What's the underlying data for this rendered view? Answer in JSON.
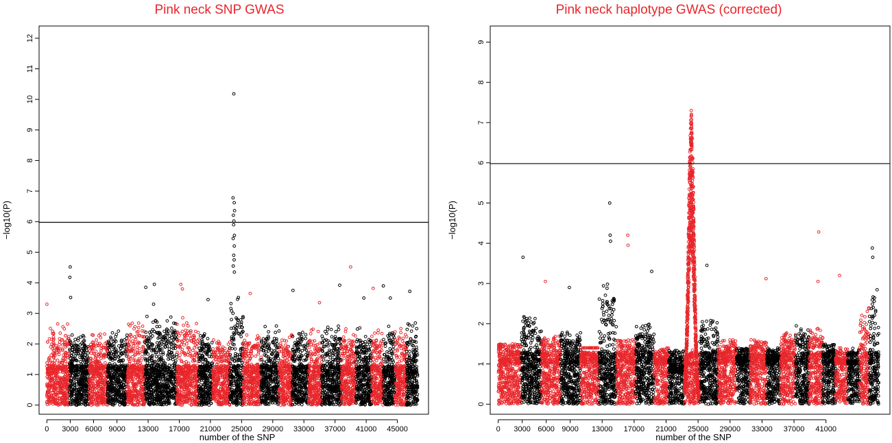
{
  "chart_data": [
    {
      "type": "scatter",
      "title": "Pink neck SNP GWAS",
      "xlabel": "number of the SNP",
      "ylabel": "−log10(P)",
      "xlim": [
        -1000,
        49000
      ],
      "ylim": [
        -0.3,
        12.4
      ],
      "x_ticks": [
        0,
        3000,
        6000,
        9000,
        13000,
        17000,
        21000,
        25000,
        29000,
        33000,
        37000,
        41000,
        45000
      ],
      "y_ticks": [
        0,
        1,
        2,
        3,
        4,
        5,
        6,
        7,
        8,
        9,
        10,
        11,
        12
      ],
      "threshold": 5.98,
      "grid": false,
      "colors": [
        "#e8262b",
        "#000000"
      ],
      "series_note": "points alternate red/black by chromosome block",
      "blocks": [
        {
          "start": 0,
          "end": 2900,
          "peak": 2.7
        },
        {
          "start": 2900,
          "end": 5400,
          "peak": 2.3
        },
        {
          "start": 5400,
          "end": 7800,
          "peak": 2.4
        },
        {
          "start": 7800,
          "end": 10300,
          "peak": 2.5
        },
        {
          "start": 10300,
          "end": 12600,
          "peak": 2.7
        },
        {
          "start": 12600,
          "end": 16700,
          "peak": 2.9
        },
        {
          "start": 16700,
          "end": 19500,
          "peak": 2.9
        },
        {
          "start": 19500,
          "end": 21300,
          "peak": 2.4
        },
        {
          "start": 21300,
          "end": 23500,
          "peak": 2.2
        },
        {
          "start": 23500,
          "end": 25200,
          "peak": 3.6
        },
        {
          "start": 25200,
          "end": 27500,
          "peak": 2.4
        },
        {
          "start": 27500,
          "end": 29800,
          "peak": 2.6
        },
        {
          "start": 29800,
          "end": 31500,
          "peak": 2.3
        },
        {
          "start": 31500,
          "end": 33600,
          "peak": 2.4
        },
        {
          "start": 33600,
          "end": 35300,
          "peak": 2.5
        },
        {
          "start": 35300,
          "end": 37800,
          "peak": 2.6
        },
        {
          "start": 37800,
          "end": 39700,
          "peak": 2.5
        },
        {
          "start": 39700,
          "end": 41700,
          "peak": 2.6
        },
        {
          "start": 41700,
          "end": 43200,
          "peak": 2.5
        },
        {
          "start": 43200,
          "end": 44700,
          "peak": 2.7
        },
        {
          "start": 44700,
          "end": 46200,
          "peak": 2.6
        },
        {
          "start": 46200,
          "end": 47600,
          "peak": 2.7
        }
      ],
      "highlights": [
        {
          "x": 24000,
          "y": 10.18
        },
        {
          "x": 23900,
          "y": 6.78
        },
        {
          "x": 24050,
          "y": 6.62
        },
        {
          "x": 24100,
          "y": 6.36
        },
        {
          "x": 23950,
          "y": 6.21
        },
        {
          "x": 24020,
          "y": 6.02
        },
        {
          "x": 23980,
          "y": 5.9
        },
        {
          "x": 24080,
          "y": 5.55
        },
        {
          "x": 23920,
          "y": 5.45
        },
        {
          "x": 24060,
          "y": 5.2
        },
        {
          "x": 23990,
          "y": 4.9
        },
        {
          "x": 24040,
          "y": 4.75
        },
        {
          "x": 23930,
          "y": 4.55
        },
        {
          "x": 24070,
          "y": 4.35
        },
        {
          "x": 3000,
          "y": 4.52
        },
        {
          "x": 2950,
          "y": 4.18
        },
        {
          "x": 3050,
          "y": 3.52
        },
        {
          "x": 13800,
          "y": 3.95
        },
        {
          "x": 12700,
          "y": 3.85
        },
        {
          "x": 17200,
          "y": 3.95
        },
        {
          "x": 17400,
          "y": 3.8
        },
        {
          "x": 37600,
          "y": 3.92
        },
        {
          "x": 39000,
          "y": 4.52
        },
        {
          "x": 41900,
          "y": 3.82
        },
        {
          "x": 43200,
          "y": 3.9
        },
        {
          "x": 46600,
          "y": 3.72
        },
        {
          "x": 31600,
          "y": 3.75
        },
        {
          "x": 26100,
          "y": 3.65
        },
        {
          "x": 20700,
          "y": 3.45
        },
        {
          "x": 0,
          "y": 3.3
        },
        {
          "x": 13700,
          "y": 3.3
        },
        {
          "x": 35000,
          "y": 3.35
        },
        {
          "x": 44100,
          "y": 3.5
        },
        {
          "x": 40700,
          "y": 3.5
        }
      ]
    },
    {
      "type": "scatter",
      "title": "Pink neck haplotype GWAS (corrected)",
      "xlabel": "number of the SNP",
      "ylabel": "−log10(P)",
      "xlim": [
        -1000,
        49000
      ],
      "ylim": [
        -0.25,
        9.4
      ],
      "x_ticks": [
        0,
        3000,
        6000,
        9000,
        13000,
        17000,
        21000,
        25000,
        29000,
        33000,
        37000,
        41000
      ],
      "y_ticks": [
        0,
        1,
        2,
        3,
        4,
        5,
        6,
        7,
        8,
        9
      ],
      "threshold": 5.98,
      "grid": false,
      "colors": [
        "#e8262b",
        "#000000"
      ],
      "blocks": [
        {
          "start": 0,
          "end": 2900,
          "peak": 1.5
        },
        {
          "start": 2900,
          "end": 5400,
          "peak": 2.2
        },
        {
          "start": 5400,
          "end": 7800,
          "peak": 1.7
        },
        {
          "start": 7800,
          "end": 10300,
          "peak": 1.8
        },
        {
          "start": 10300,
          "end": 12600,
          "peak": 1.4
        },
        {
          "start": 12600,
          "end": 14800,
          "peak": 3.2
        },
        {
          "start": 14800,
          "end": 17200,
          "peak": 1.6
        },
        {
          "start": 17200,
          "end": 19500,
          "peak": 2.0
        },
        {
          "start": 19500,
          "end": 21300,
          "peak": 1.2
        },
        {
          "start": 21300,
          "end": 23300,
          "peak": 0.7
        },
        {
          "start": 23300,
          "end": 25200,
          "peak": 1.0
        },
        {
          "start": 25200,
          "end": 27500,
          "peak": 2.2
        },
        {
          "start": 27500,
          "end": 29800,
          "peak": 1.6
        },
        {
          "start": 29800,
          "end": 31500,
          "peak": 1.3
        },
        {
          "start": 31500,
          "end": 33600,
          "peak": 1.6
        },
        {
          "start": 33600,
          "end": 35300,
          "peak": 1.3
        },
        {
          "start": 35300,
          "end": 37200,
          "peak": 1.8
        },
        {
          "start": 37200,
          "end": 38900,
          "peak": 2.0
        },
        {
          "start": 38900,
          "end": 40600,
          "peak": 1.9
        },
        {
          "start": 40600,
          "end": 42200,
          "peak": 1.5
        },
        {
          "start": 42200,
          "end": 43700,
          "peak": 1.2
        },
        {
          "start": 43700,
          "end": 45200,
          "peak": 1.1
        },
        {
          "start": 45200,
          "end": 46400,
          "peak": 2.4
        },
        {
          "start": 46400,
          "end": 47600,
          "peak": 3.0
        }
      ],
      "peak_region": {
        "start": 23300,
        "end": 25100,
        "center": 24150,
        "max": 7.3
      },
      "highlights": [
        {
          "x": 24150,
          "y": 7.3
        },
        {
          "x": 24130,
          "y": 7.15
        },
        {
          "x": 24170,
          "y": 7.0
        },
        {
          "x": 24100,
          "y": 6.85
        },
        {
          "x": 24200,
          "y": 6.62
        },
        {
          "x": 24120,
          "y": 6.45
        },
        {
          "x": 13950,
          "y": 5.0
        },
        {
          "x": 14000,
          "y": 4.2
        },
        {
          "x": 14050,
          "y": 4.05
        },
        {
          "x": 16200,
          "y": 4.2
        },
        {
          "x": 16250,
          "y": 3.95
        },
        {
          "x": 40100,
          "y": 4.28
        },
        {
          "x": 46800,
          "y": 3.88
        },
        {
          "x": 46850,
          "y": 3.65
        },
        {
          "x": 3100,
          "y": 3.65
        },
        {
          "x": 26100,
          "y": 3.45
        },
        {
          "x": 42700,
          "y": 3.2
        },
        {
          "x": 33500,
          "y": 3.12
        },
        {
          "x": 5900,
          "y": 3.05
        },
        {
          "x": 8900,
          "y": 2.9
        },
        {
          "x": 40000,
          "y": 3.05
        },
        {
          "x": 19200,
          "y": 3.3
        }
      ]
    }
  ]
}
